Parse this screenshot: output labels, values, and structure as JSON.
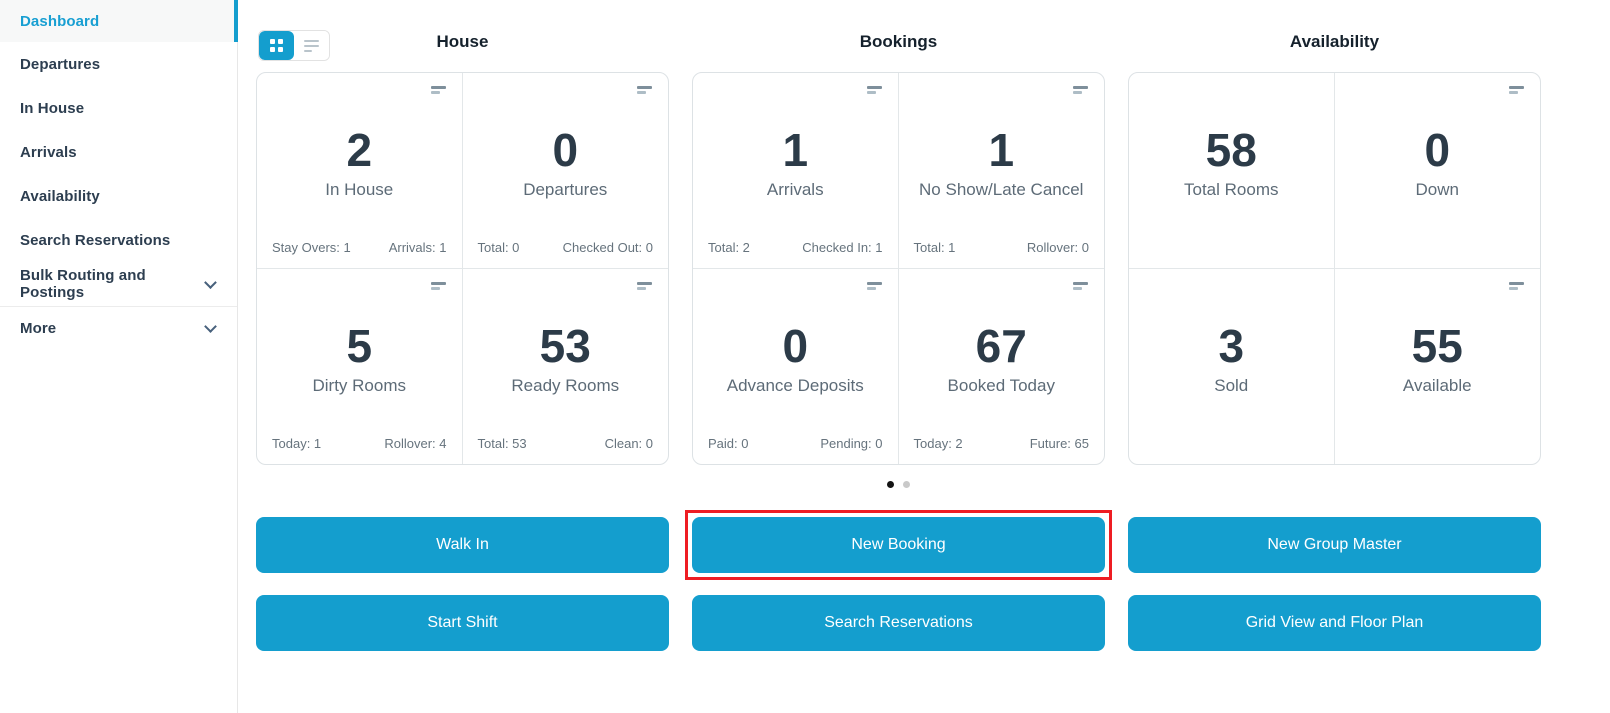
{
  "colors": {
    "accent_blue": "#149ece",
    "highlight_red": "#ee1d23",
    "active_dot": "#141414",
    "stat_number": "#2c3b48"
  },
  "sidebar": {
    "items": [
      {
        "label": "Dashboard",
        "active": true
      },
      {
        "label": "Departures"
      },
      {
        "label": "In House"
      },
      {
        "label": "Arrivals"
      },
      {
        "label": "Availability"
      },
      {
        "label": "Search Reservations"
      },
      {
        "label": "Bulk Routing and Postings",
        "expandable": true
      },
      {
        "label": "More",
        "expandable": true
      }
    ]
  },
  "view_toggle": {
    "active": "grid",
    "options": [
      "grid-view",
      "list-view"
    ]
  },
  "sections": [
    {
      "title": "House",
      "cards": [
        {
          "value": "2",
          "label": "In House",
          "footer_left": "Stay Overs: 1",
          "footer_right": "Arrivals: 1"
        },
        {
          "value": "0",
          "label": "Departures",
          "footer_left": "Total: 0",
          "footer_right": "Checked Out: 0"
        },
        {
          "value": "5",
          "label": "Dirty Rooms",
          "footer_left": "Today: 1",
          "footer_right": "Rollover: 4"
        },
        {
          "value": "53",
          "label": "Ready Rooms",
          "footer_left": "Total: 53",
          "footer_right": "Clean: 0"
        }
      ]
    },
    {
      "title": "Bookings",
      "cards": [
        {
          "value": "1",
          "label": "Arrivals",
          "footer_left": "Total: 2",
          "footer_right": "Checked In: 1"
        },
        {
          "value": "1",
          "label": "No Show/Late Cancel",
          "footer_left": "Total: 1",
          "footer_right": "Rollover: 0"
        },
        {
          "value": "0",
          "label": "Advance Deposits",
          "footer_left": "Paid: 0",
          "footer_right": "Pending: 0"
        },
        {
          "value": "67",
          "label": "Booked Today",
          "footer_left": "Today: 2",
          "footer_right": "Future: 65"
        }
      ]
    },
    {
      "title": "Availability",
      "cards": [
        {
          "value": "58",
          "label": "Total Rooms"
        },
        {
          "value": "0",
          "label": "Down"
        },
        {
          "value": "3",
          "label": "Sold"
        },
        {
          "value": "55",
          "label": "Available"
        }
      ]
    }
  ],
  "pagination": {
    "pages": 2,
    "active_page": 1
  },
  "buttons": {
    "walk_in": "Walk In",
    "new_booking": "New Booking",
    "new_group_master": "New Group Master",
    "start_shift": "Start Shift",
    "search_reservations": "Search Reservations",
    "grid_view_floor_plan": "Grid View and Floor Plan",
    "highlighted": "New Booking"
  }
}
